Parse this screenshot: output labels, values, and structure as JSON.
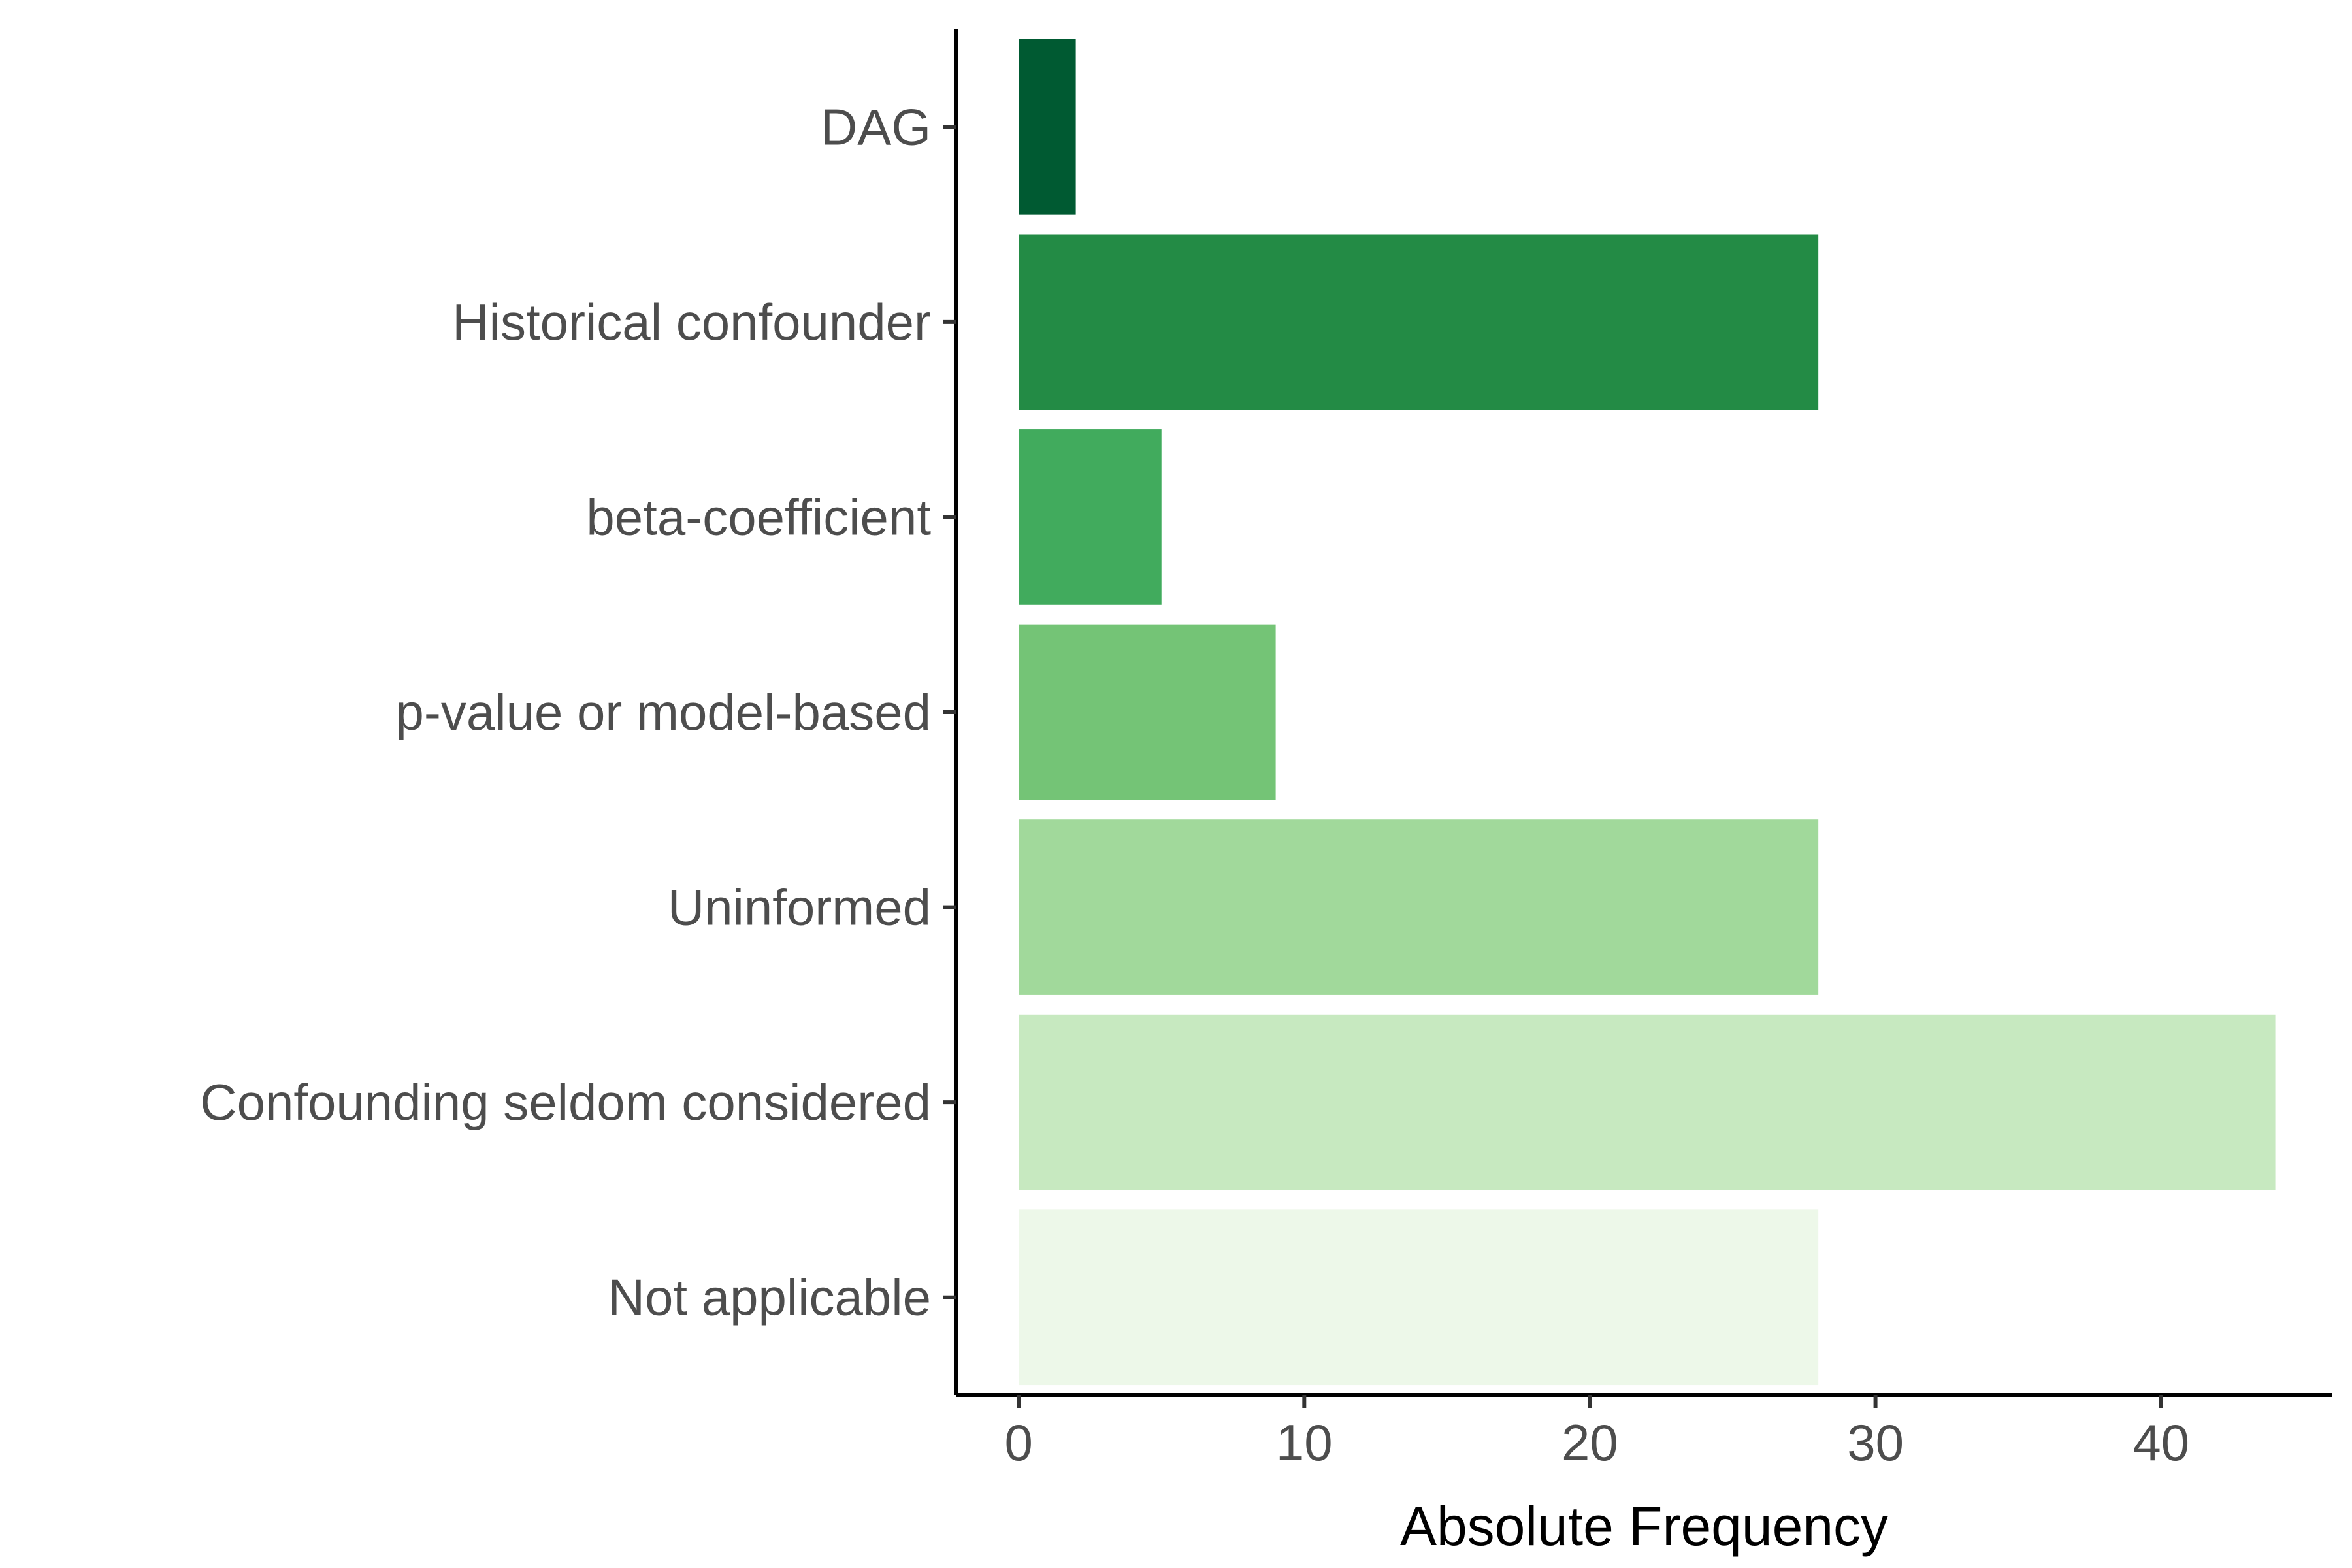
{
  "chart_data": {
    "type": "bar",
    "orientation": "horizontal",
    "title": "",
    "xlabel": "Absolute Frequency",
    "ylabel": "",
    "xlim": [
      -2.2,
      46
    ],
    "xticks": [
      0,
      10,
      20,
      30,
      40
    ],
    "grid": false,
    "legend": "none",
    "categories": [
      "DAG",
      "Historical confounder",
      "beta-coefficient",
      "p-value or model-based",
      "Uninformed",
      "Confounding seldom considered",
      "Not applicable"
    ],
    "values": [
      2,
      28,
      5,
      9,
      28,
      44,
      28
    ],
    "colors": [
      "#005a32",
      "#238b45",
      "#41ab5d",
      "#74c476",
      "#a1d99b",
      "#c7e9c0",
      "#edf8e9"
    ]
  }
}
